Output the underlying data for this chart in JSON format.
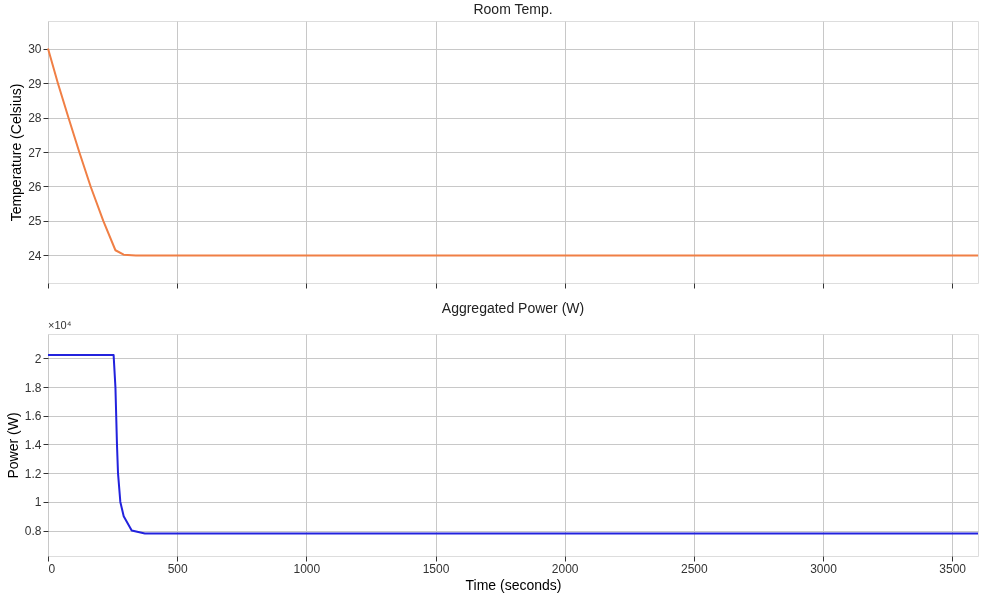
{
  "chart_data": [
    {
      "type": "line",
      "title": "Room Temp.",
      "ylabel": "Temperature (Celsius)",
      "xlim": [
        0,
        3600
      ],
      "xticks": [
        0,
        500,
        1000,
        1500,
        2000,
        2500,
        3000,
        3500
      ],
      "ylim": [
        23.2,
        30.8
      ],
      "yticks": [
        24,
        25,
        26,
        27,
        28,
        29,
        30
      ],
      "grid": true,
      "tick_labels": "y",
      "series": [
        {
          "color": "#f07f45",
          "x": [
            0,
            38,
            79,
            121,
            165,
            214,
            261,
            293,
            340,
            3600
          ],
          "values": [
            30,
            29,
            28,
            27,
            26,
            25,
            24.15,
            24.02,
            24,
            24
          ]
        }
      ]
    },
    {
      "type": "line",
      "title": "Aggregated Power (W)",
      "xlabel": "Time (seconds)",
      "ylabel": "Power (W)",
      "annotations": [
        "×10⁴"
      ],
      "xlim": [
        0,
        3600
      ],
      "xticks": [
        0,
        500,
        1000,
        1500,
        2000,
        2500,
        3000,
        3500
      ],
      "ylim": [
        0.623,
        2.17
      ],
      "yticks": [
        0.8,
        1,
        1.2,
        1.4,
        1.6,
        1.8,
        2
      ],
      "grid": true,
      "series": [
        {
          "color": "#2222dd",
          "x": [
            0,
            254,
            261,
            267,
            271,
            280,
            293,
            324,
            375,
            3600
          ],
          "values": [
            2.023,
            2.023,
            1.8,
            1.4,
            1.2,
            1.0,
            0.9,
            0.8,
            0.78,
            0.78
          ]
        }
      ]
    }
  ]
}
